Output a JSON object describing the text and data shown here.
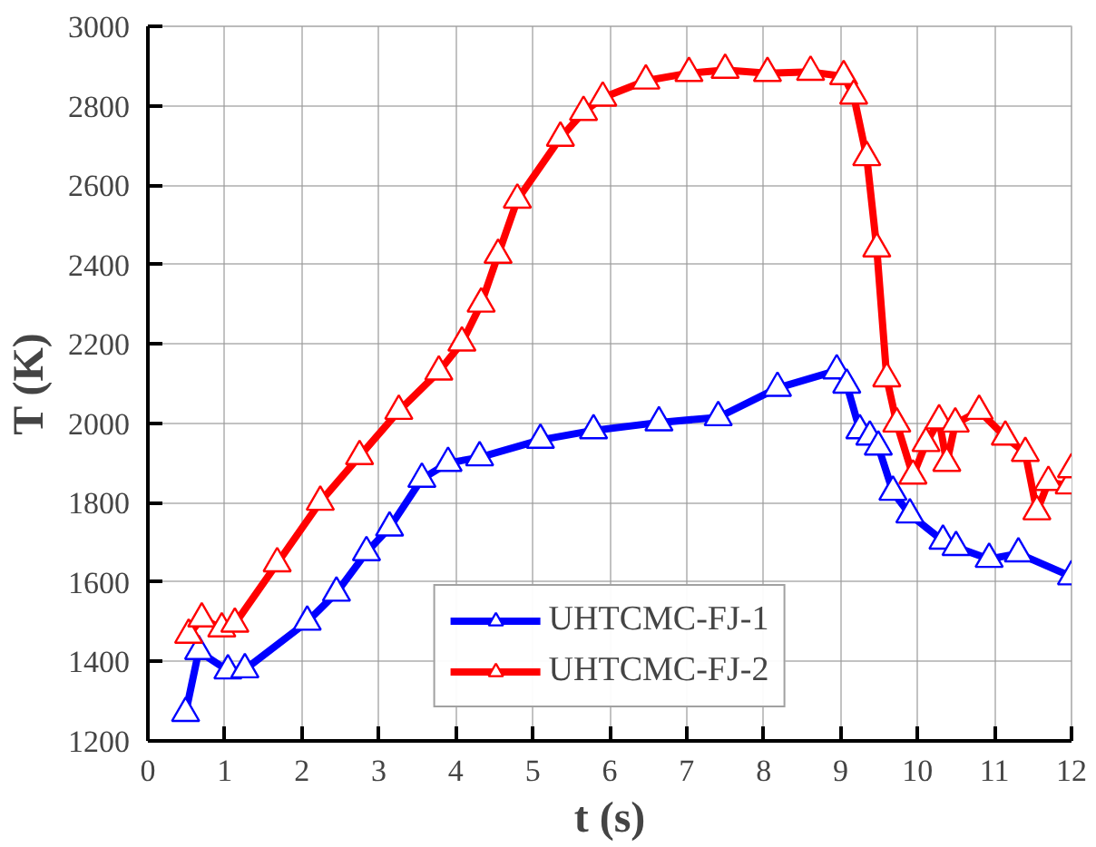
{
  "chart_data": {
    "type": "line",
    "xlabel": "t (s)",
    "ylabel": "T (K)",
    "xlim": [
      0,
      12
    ],
    "ylim": [
      1200,
      3000
    ],
    "xticks": [
      0,
      1,
      2,
      3,
      4,
      5,
      6,
      7,
      8,
      9,
      10,
      11,
      12
    ],
    "yticks": [
      1200,
      1400,
      1600,
      1800,
      2000,
      2200,
      2400,
      2600,
      2800,
      3000
    ],
    "grid": true,
    "legend": "bottom",
    "marker": "triangle",
    "line_style": "solid",
    "series": [
      {
        "name": "UHTCMC-FJ-1",
        "color": "#0000ff",
        "x": [
          0.49,
          0.66,
          1.04,
          1.26,
          2.07,
          2.45,
          2.84,
          3.14,
          3.56,
          3.9,
          4.31,
          5.1,
          5.79,
          6.64,
          7.41,
          8.18,
          8.95,
          9.08,
          9.25,
          9.38,
          9.49,
          9.68,
          9.9,
          10.33,
          10.5,
          10.93,
          11.31,
          12
        ],
        "values": [
          1270,
          1426,
          1377,
          1380,
          1500,
          1573,
          1675,
          1737,
          1860,
          1900,
          1914,
          1958,
          1982,
          2002,
          2015,
          2089,
          2133,
          2097,
          1982,
          1966,
          1941,
          1827,
          1770,
          1704,
          1688,
          1658,
          1672,
          1614
        ]
      },
      {
        "name": "UHTCMC-FJ-2",
        "color": "#ff0000",
        "x": [
          0.53,
          0.7,
          0.96,
          1.13,
          1.68,
          2.24,
          2.75,
          3.26,
          3.78,
          4.08,
          4.33,
          4.55,
          4.8,
          5.36,
          5.66,
          5.91,
          6.47,
          7.03,
          7.5,
          8.05,
          8.61,
          9.04,
          9.17,
          9.34,
          9.47,
          9.6,
          9.73,
          9.94,
          10.11,
          10.28,
          10.38,
          10.49,
          10.8,
          11.14,
          11.4,
          11.55,
          11.7,
          11.97,
          12
        ],
        "values": [
          1467,
          1508,
          1483,
          1495,
          1647,
          1802,
          1917,
          2031,
          2130,
          2203,
          2301,
          2424,
          2563,
          2719,
          2784,
          2820,
          2863,
          2882,
          2890,
          2882,
          2885,
          2874,
          2825,
          2670,
          2440,
          2113,
          1999,
          1868,
          1950,
          2007,
          1900,
          1999,
          2031,
          1966,
          1925,
          1778,
          1852,
          1843,
          1884
        ]
      }
    ]
  }
}
